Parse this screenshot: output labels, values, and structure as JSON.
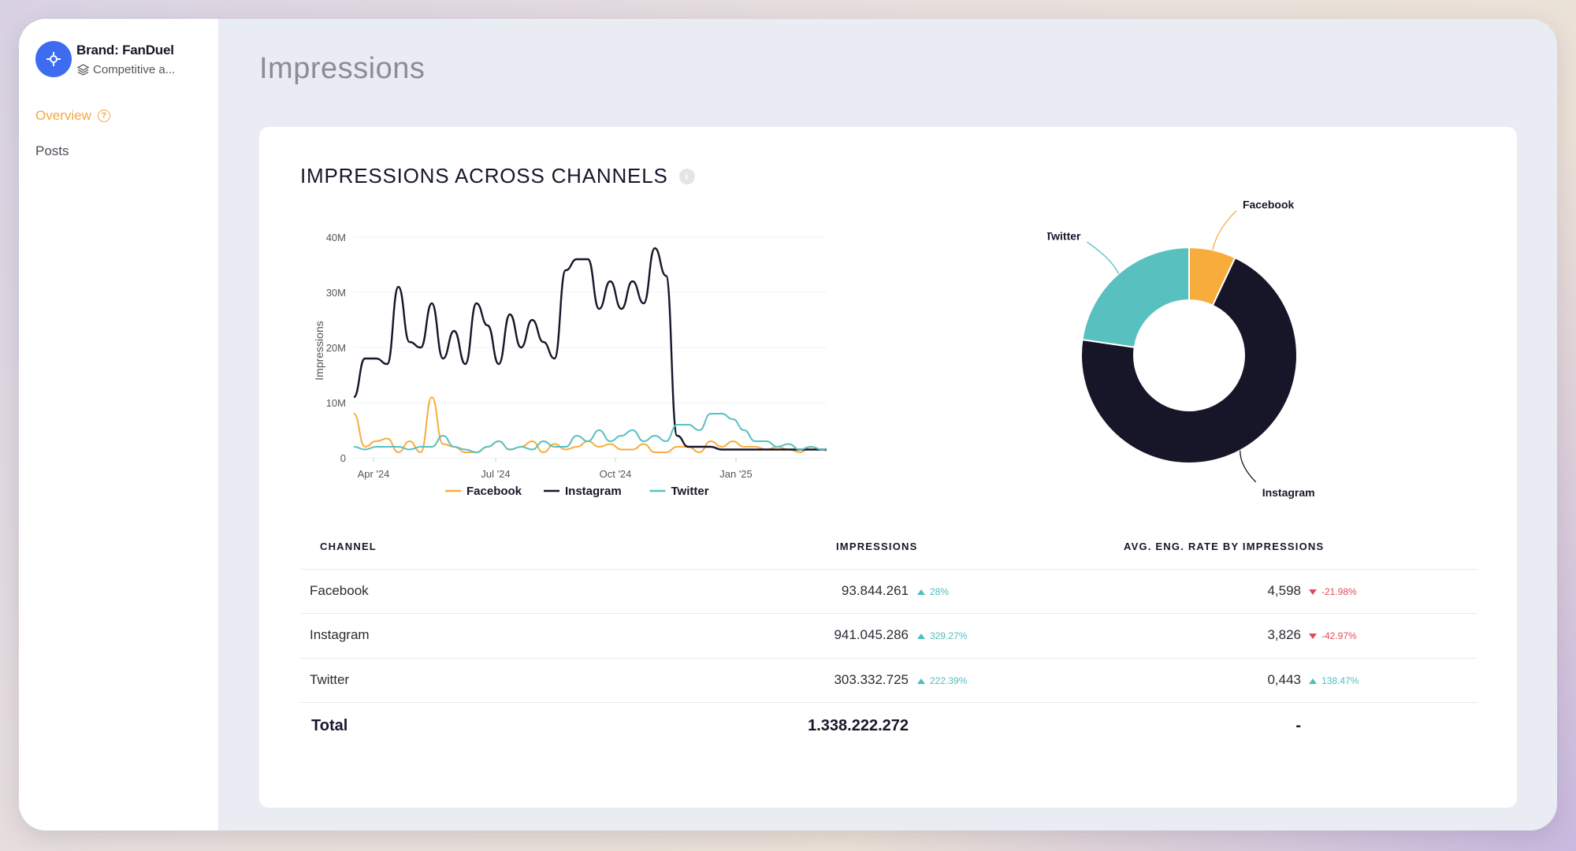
{
  "brand": {
    "title": "Brand: FanDuel",
    "subtitle": "Competitive a..."
  },
  "nav": {
    "overview": "Overview",
    "posts": "Posts"
  },
  "page": {
    "title": "Impressions"
  },
  "card": {
    "title": "IMPRESSIONS ACROSS CHANNELS"
  },
  "colors": {
    "facebook": "#f7ad3c",
    "instagram": "#171629",
    "twitter": "#59c0c0",
    "accent": "#f5a83a"
  },
  "chart_data": [
    {
      "type": "line",
      "ylabel": "Impressions",
      "yticks": [
        "40M",
        "30M",
        "20M",
        "10M",
        "0"
      ],
      "ylim": [
        0,
        40000000
      ],
      "xticks": [
        "Apr '24",
        "Jul '24",
        "Oct '24",
        "Jan '25"
      ],
      "legend": "bottom",
      "grid": true,
      "series": [
        {
          "name": "Facebook",
          "color": "#f7ad3c",
          "values": [
            8,
            2,
            3,
            3.5,
            1,
            3,
            1,
            11,
            2.5,
            2,
            1,
            1,
            2,
            3,
            1.5,
            2,
            3,
            1,
            2.5,
            1.5,
            2,
            3,
            2,
            2.5,
            1.5,
            1.5,
            2.5,
            1,
            1,
            2,
            2,
            1,
            3,
            2,
            3,
            2,
            2,
            1.5,
            2,
            1.5,
            1,
            2,
            1.5,
            1,
            1,
            0.5,
            1,
            0.5
          ]
        },
        {
          "name": "Instagram",
          "color": "#171629",
          "values": [
            11,
            18,
            18,
            17,
            31,
            21,
            20,
            28,
            18,
            23,
            17,
            28,
            24,
            17,
            26,
            20,
            25,
            21,
            18,
            34,
            36,
            36,
            27,
            32,
            27,
            32,
            28,
            38,
            33,
            4,
            2,
            2,
            2,
            1.5,
            1.5,
            1.5,
            1.5,
            1.5,
            1.5,
            1.5,
            1.5,
            1.5,
            1.5,
            1.5,
            1.5,
            1.5,
            1.5,
            1
          ]
        },
        {
          "name": "Twitter",
          "color": "#59c0c0",
          "values": [
            2,
            1.5,
            2,
            2,
            2,
            1.5,
            2,
            2,
            4,
            2,
            1.5,
            1,
            2,
            3,
            1.5,
            2,
            1.5,
            3,
            2,
            2,
            4,
            3,
            5,
            3,
            4,
            5,
            3,
            4,
            3,
            6,
            6,
            5,
            8,
            8,
            7,
            5,
            3,
            3,
            2,
            2.5,
            1.5,
            2,
            1.5,
            2,
            1,
            1.5,
            2,
            1
          ]
        }
      ]
    },
    {
      "type": "pie",
      "donut": true,
      "slices": [
        {
          "label": "Facebook",
          "value": 93844261,
          "color": "#f7ad3c"
        },
        {
          "label": "Instagram",
          "value": 941045286,
          "color": "#171629"
        },
        {
          "label": "Twitter",
          "value": 303332725,
          "color": "#59c0c0"
        }
      ]
    }
  ],
  "table": {
    "headers": {
      "channel": "CHANNEL",
      "impressions": "IMPRESSIONS",
      "avg": "AVG. ENG. RATE BY IMPRESSIONS"
    },
    "rows": [
      {
        "channel": "Facebook",
        "impressions": "93.844.261",
        "imp_change": "28%",
        "imp_dir": "up",
        "avg": "4,598",
        "avg_change": "-21.98%",
        "avg_dir": "down"
      },
      {
        "channel": "Instagram",
        "impressions": "941.045.286",
        "imp_change": "329.27%",
        "imp_dir": "up",
        "avg": "3,826",
        "avg_change": "-42.97%",
        "avg_dir": "down"
      },
      {
        "channel": "Twitter",
        "impressions": "303.332.725",
        "imp_change": "222.39%",
        "imp_dir": "up",
        "avg": "0,443",
        "avg_change": "138.47%",
        "avg_dir": "up"
      }
    ],
    "total": {
      "label": "Total",
      "impressions": "1.338.222.272",
      "avg": "-"
    }
  }
}
